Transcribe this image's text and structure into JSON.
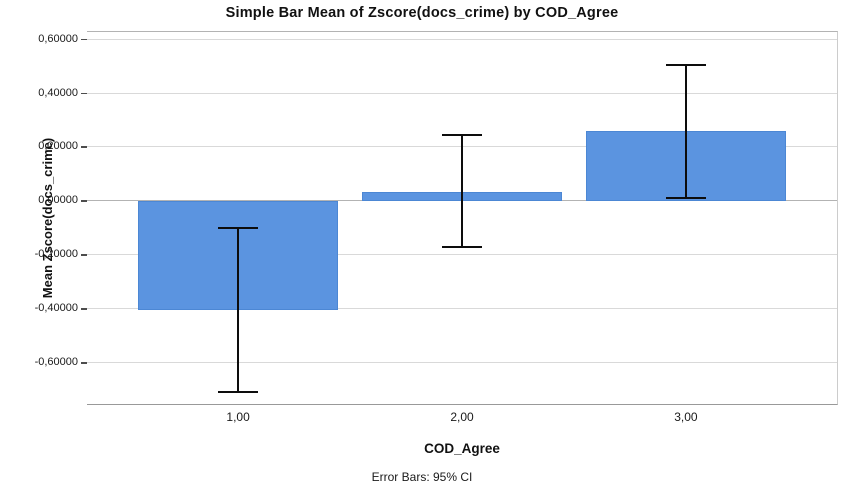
{
  "chart_data": {
    "type": "bar",
    "title": "Simple Bar Mean of Zscore(docs_crime) by COD_Agree",
    "xlabel": "COD_Agree",
    "ylabel": "Mean Zscore(docs_crime)",
    "footnote": "Error Bars: 95% CI",
    "categories": [
      "1,00",
      "2,00",
      "3,00"
    ],
    "x_positions": [
      1,
      2,
      3
    ],
    "values": [
      -0.405,
      0.033,
      0.258
    ],
    "error_bars": {
      "type": "95% CI",
      "low": [
        -0.71,
        -0.172,
        0.012
      ],
      "high": [
        -0.101,
        0.245,
        0.505
      ]
    },
    "yticks": [
      {
        "value": 0.6,
        "label": "0,60000"
      },
      {
        "value": 0.4,
        "label": "0,40000"
      },
      {
        "value": 0.2,
        "label": "0,20000"
      },
      {
        "value": 0.0,
        "label": "0,00000"
      },
      {
        "value": -0.2,
        "label": "-0,20000"
      },
      {
        "value": -0.4,
        "label": "-0,40000"
      },
      {
        "value": -0.6,
        "label": "-0,60000"
      }
    ],
    "ylim": [
      -0.75,
      0.63
    ],
    "xlim": [
      0.325,
      3.675
    ],
    "bar_width_units": 0.893,
    "grid": true,
    "legend": "none",
    "bar_color": "#5B94E0",
    "bar_border_color": "#4C87D4",
    "grid_color": "#D9D9D9",
    "zero_line_color": "#B3B3B3",
    "error_bar_color": "#0D0D0D",
    "axis_color": "#4D4D4D",
    "text_color": "#111111"
  }
}
